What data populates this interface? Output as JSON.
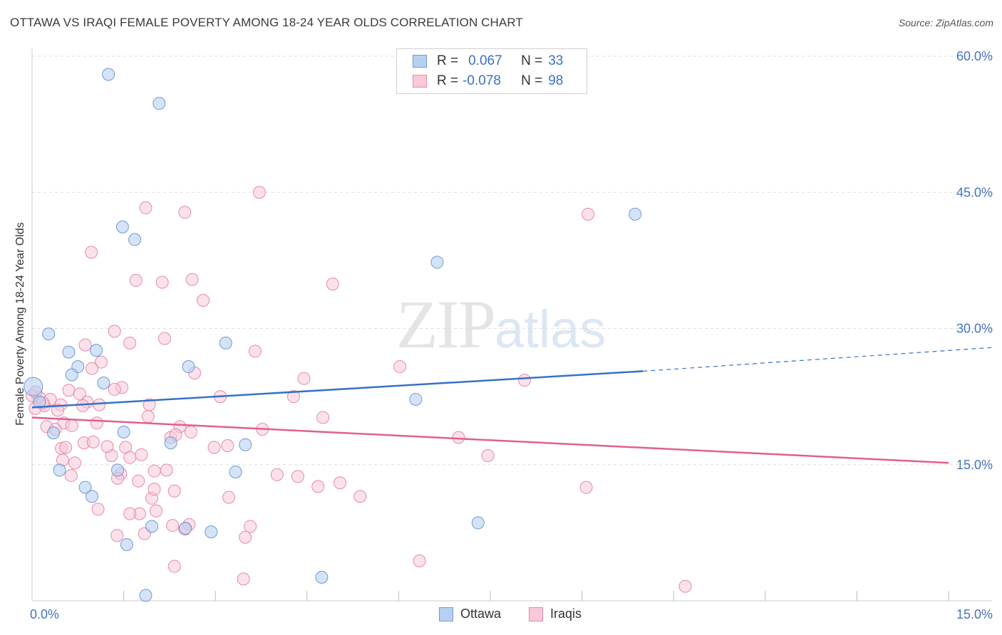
{
  "title": "OTTAWA VS IRAQI FEMALE POVERTY AMONG 18-24 YEAR OLDS CORRELATION CHART",
  "source": "Source: ZipAtlas.com",
  "watermark": {
    "zip": "ZIP",
    "atlas": "atlas"
  },
  "legend": {
    "rows": [
      {
        "r_label": "R =",
        "r_value": "0.067",
        "n_label": "N =",
        "n_value": "33"
      },
      {
        "r_label": "R =",
        "r_value": "-0.078",
        "n_label": "N =",
        "n_value": "98"
      }
    ]
  },
  "bottom_legend": {
    "ottawa": "Ottawa",
    "iraqis": "Iraqis"
  },
  "colors": {
    "ottawa_fill": "#b8d0f0",
    "ottawa_stroke": "#6f9ad6",
    "ottawa_line": "#3672c8",
    "iraqi_fill": "#f8c9d8",
    "iraqi_stroke": "#e68aa8",
    "iraqi_line": "#e0608f",
    "tick_label": "#4472c4",
    "grid": "#dddddd"
  },
  "chart_data": {
    "type": "scatter",
    "title": "OTTAWA VS IRAQI FEMALE POVERTY AMONG 18-24 YEAR OLDS CORRELATION CHART",
    "xlabel": "",
    "ylabel": "Female Poverty Among 18-24 Year Olds",
    "xlim": [
      0,
      15
    ],
    "ylim": [
      0,
      60
    ],
    "x_tick_labels": [
      {
        "value": 0,
        "label": "0.0%"
      },
      {
        "value": 15,
        "label": "15.0%"
      }
    ],
    "y_tick_labels": [
      {
        "value": 15,
        "label": "15.0%"
      },
      {
        "value": 30,
        "label": "30.0%"
      },
      {
        "value": 45,
        "label": "45.0%"
      },
      {
        "value": 60,
        "label": "60.0%"
      }
    ],
    "series": [
      {
        "name": "Ottawa",
        "r": 0.067,
        "n": 33,
        "trend": {
          "x0": 0,
          "y0": 21.3,
          "x1": 10,
          "y1": 25.3,
          "dash_to_x": 15,
          "dash_to_y": 27.4
        },
        "points": [
          [
            1.25,
            58.0
          ],
          [
            2.08,
            54.8
          ],
          [
            0.27,
            29.4
          ],
          [
            0.6,
            27.4
          ],
          [
            1.05,
            27.6
          ],
          [
            0.75,
            25.8
          ],
          [
            0.65,
            24.9
          ],
          [
            1.17,
            24.0
          ],
          [
            0.02,
            23.6
          ],
          [
            2.56,
            25.8
          ],
          [
            3.17,
            28.4
          ],
          [
            1.48,
            41.2
          ],
          [
            1.68,
            39.8
          ],
          [
            0.35,
            18.5
          ],
          [
            1.5,
            18.6
          ],
          [
            2.27,
            17.4
          ],
          [
            3.49,
            17.2
          ],
          [
            0.45,
            14.4
          ],
          [
            1.4,
            14.4
          ],
          [
            3.33,
            14.2
          ],
          [
            0.87,
            12.5
          ],
          [
            0.98,
            11.5
          ],
          [
            1.55,
            6.2
          ],
          [
            1.96,
            8.2
          ],
          [
            2.51,
            8.0
          ],
          [
            2.93,
            7.6
          ],
          [
            1.86,
            0.6
          ],
          [
            4.74,
            2.6
          ],
          [
            6.63,
            37.3
          ],
          [
            9.87,
            42.6
          ],
          [
            6.28,
            22.2
          ],
          [
            7.3,
            8.6
          ],
          [
            0.12,
            21.9
          ]
        ]
      },
      {
        "name": "Iraqis",
        "r": -0.078,
        "n": 98,
        "trend": {
          "x0": 0,
          "y0": 20.2,
          "x1": 15,
          "y1": 15.2
        },
        "points": [
          [
            3.72,
            45.0
          ],
          [
            1.86,
            43.3
          ],
          [
            2.5,
            42.8
          ],
          [
            9.1,
            42.6
          ],
          [
            0.97,
            38.4
          ],
          [
            1.7,
            35.3
          ],
          [
            2.13,
            35.1
          ],
          [
            2.62,
            35.4
          ],
          [
            4.92,
            34.9
          ],
          [
            2.8,
            33.1
          ],
          [
            1.35,
            29.7
          ],
          [
            2.17,
            28.9
          ],
          [
            1.6,
            28.4
          ],
          [
            0.87,
            28.2
          ],
          [
            3.65,
            27.5
          ],
          [
            1.13,
            26.3
          ],
          [
            0.98,
            25.6
          ],
          [
            2.66,
            25.1
          ],
          [
            6.02,
            25.8
          ],
          [
            8.06,
            24.3
          ],
          [
            4.45,
            24.5
          ],
          [
            1.47,
            23.5
          ],
          [
            0.6,
            23.2
          ],
          [
            0.78,
            22.8
          ],
          [
            0.12,
            22.4
          ],
          [
            0.3,
            22.2
          ],
          [
            0.47,
            21.6
          ],
          [
            0.2,
            21.5
          ],
          [
            0.0,
            22.6
          ],
          [
            0.05,
            21.2
          ],
          [
            0.42,
            21.0
          ],
          [
            0.9,
            21.9
          ],
          [
            1.1,
            21.6
          ],
          [
            0.83,
            21.5
          ],
          [
            1.92,
            21.6
          ],
          [
            3.08,
            22.5
          ],
          [
            4.28,
            22.5
          ],
          [
            1.9,
            20.3
          ],
          [
            4.76,
            20.2
          ],
          [
            0.52,
            19.6
          ],
          [
            0.24,
            19.2
          ],
          [
            0.38,
            18.9
          ],
          [
            1.06,
            19.6
          ],
          [
            2.42,
            19.2
          ],
          [
            3.77,
            18.9
          ],
          [
            2.6,
            18.6
          ],
          [
            2.27,
            18.0
          ],
          [
            2.35,
            18.3
          ],
          [
            6.98,
            18.0
          ],
          [
            0.48,
            16.8
          ],
          [
            0.85,
            17.4
          ],
          [
            1.53,
            16.9
          ],
          [
            2.98,
            16.9
          ],
          [
            1.3,
            16.0
          ],
          [
            1.6,
            15.8
          ],
          [
            0.7,
            15.2
          ],
          [
            0.5,
            15.5
          ],
          [
            1.45,
            14.0
          ],
          [
            1.4,
            13.5
          ],
          [
            1.74,
            13.2
          ],
          [
            2.0,
            14.3
          ],
          [
            2.2,
            14.4
          ],
          [
            7.46,
            16.0
          ],
          [
            4.01,
            13.9
          ],
          [
            4.35,
            13.7
          ],
          [
            4.68,
            12.6
          ],
          [
            5.04,
            13.0
          ],
          [
            3.22,
            11.4
          ],
          [
            5.37,
            11.5
          ],
          [
            9.07,
            12.5
          ],
          [
            1.96,
            11.3
          ],
          [
            2.0,
            12.3
          ],
          [
            1.08,
            10.1
          ],
          [
            1.76,
            9.6
          ],
          [
            2.03,
            9.9
          ],
          [
            1.6,
            9.6
          ],
          [
            2.57,
            8.4
          ],
          [
            2.3,
            8.3
          ],
          [
            3.57,
            8.2
          ],
          [
            1.84,
            7.4
          ],
          [
            1.39,
            7.2
          ],
          [
            3.49,
            7.0
          ],
          [
            2.5,
            7.9
          ],
          [
            6.34,
            4.4
          ],
          [
            2.33,
            3.8
          ],
          [
            3.46,
            2.4
          ],
          [
            10.69,
            1.6
          ],
          [
            0.64,
            13.8
          ],
          [
            0.18,
            21.8
          ],
          [
            0.06,
            23.0
          ],
          [
            1.35,
            23.3
          ],
          [
            1.79,
            16.1
          ],
          [
            2.33,
            12.1
          ],
          [
            0.65,
            19.3
          ],
          [
            1.0,
            17.5
          ],
          [
            3.2,
            17.1
          ],
          [
            0.55,
            16.9
          ],
          [
            1.23,
            17.0
          ]
        ]
      }
    ]
  }
}
